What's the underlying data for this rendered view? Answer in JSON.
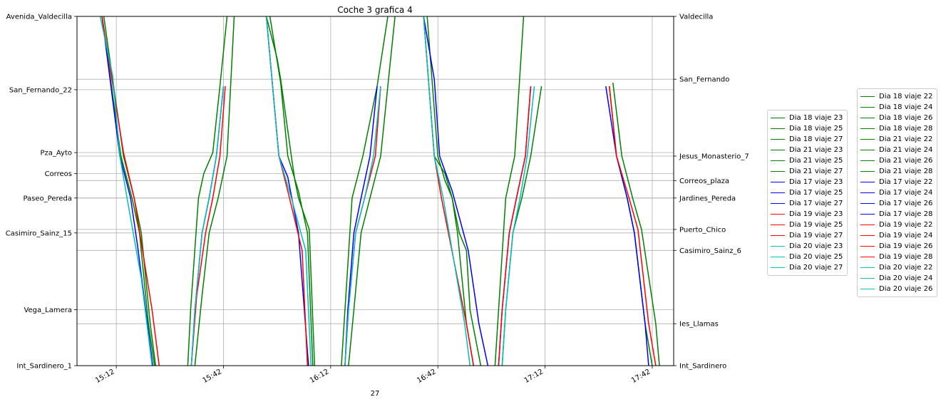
{
  "chart_data": {
    "type": "line",
    "title": "Coche 3 grafica 4",
    "xlabel": "27",
    "x_ticks": [
      "15:12",
      "15:42",
      "16:12",
      "16:42",
      "17:12",
      "17:42"
    ],
    "x_range_minutes": [
      901,
      1068
    ],
    "grid": true,
    "colors": {
      "Dia 17": "#0000ff",
      "Dia 18": "#008000",
      "Dia 19": "#ff0000",
      "Dia 20": "#00bfbf",
      "Dia 21": "#008000"
    },
    "left_stops": [
      {
        "name": "Avenida_Valdecilla",
        "pos": 0
      },
      {
        "name": "San_Fernando_22",
        "pos": 21
      },
      {
        "name": "Pza_Ayto",
        "pos": 39
      },
      {
        "name": "Correos",
        "pos": 45
      },
      {
        "name": "Paseo_Pereda",
        "pos": 52
      },
      {
        "name": "Casimiro_Sainz_15",
        "pos": 62
      },
      {
        "name": "Vega_Lamera",
        "pos": 84
      },
      {
        "name": "Int_Sardinero_1",
        "pos": 100
      }
    ],
    "right_stops": [
      {
        "name": "Valdecilla",
        "pos": 0
      },
      {
        "name": "San_Fernando",
        "pos": 18
      },
      {
        "name": "Jesus_Monasterio_7",
        "pos": 40
      },
      {
        "name": "Correos_plaza",
        "pos": 47
      },
      {
        "name": "Jardines_Pereda",
        "pos": 52
      },
      {
        "name": "Puerto_Chico",
        "pos": 61
      },
      {
        "name": "Casimiro_Sainz_6",
        "pos": 67
      },
      {
        "name": "Ies_Llamas",
        "pos": 88
      },
      {
        "name": "Int_Sardinero",
        "pos": 100
      }
    ],
    "series": [
      {
        "name": "Dia 18 viaje 23",
        "color": "#008000",
        "group": "odd",
        "x": [
          908,
          913.3,
          916.4,
          918.5,
          921,
          922.7
        ],
        "y": [
          0,
          40,
          52,
          62,
          88,
          100
        ]
      },
      {
        "name": "Dia 18 viaje 25",
        "color": "#008000",
        "group": "odd",
        "x": [
          954,
          957,
          958,
          961,
          962,
          963,
          966,
          967.5
        ],
        "y": [
          0,
          12,
          18,
          40,
          47,
          52,
          61,
          100
        ]
      },
      {
        "name": "Dia 18 viaje 27",
        "color": "#008000",
        "group": "odd",
        "x": [
          998,
          1001,
          1004,
          1006,
          1008,
          1010,
          1011,
          1014
        ],
        "y": [
          0,
          40,
          45,
          52,
          62,
          67,
          84,
          100
        ]
      },
      {
        "name": "Dia 21 viaje 23",
        "color": "#008000",
        "group": "odd",
        "x": [
          908.5,
          914,
          917,
          919,
          921.5,
          923
        ],
        "y": [
          0,
          40,
          52,
          62,
          88,
          100
        ]
      },
      {
        "name": "Dia 21 viaje 25",
        "color": "#008000",
        "group": "odd",
        "x": [
          955,
          958,
          960,
          963,
          964,
          965.5,
          967
        ],
        "y": [
          0,
          19,
          40,
          50,
          55,
          62,
          100
        ]
      },
      {
        "name": "Dia 21 viaje 27",
        "color": "#008000",
        "group": "odd",
        "x": [
          999,
          1002,
          1004,
          1006,
          1007.5,
          1010,
          1012
        ],
        "y": [
          0,
          40,
          47,
          52,
          62,
          88,
          100
        ]
      },
      {
        "name": "Dia 17 viaje 23",
        "color": "#0000ff",
        "group": "odd",
        "x": [
          908,
          913,
          916,
          918,
          922.2
        ],
        "y": [
          0,
          40,
          52,
          66,
          100
        ]
      },
      {
        "name": "Dia 17 viaje 25",
        "color": "#0000ff",
        "group": "odd",
        "x": [
          954,
          957.5,
          960,
          963,
          965.8
        ],
        "y": [
          0,
          40,
          46,
          62,
          100
        ]
      },
      {
        "name": "Dia 17 viaje 27",
        "color": "#0000ff",
        "group": "odd",
        "x": [
          998,
          1001,
          1002.5,
          1006,
          1010.5,
          1013.5,
          1016
        ],
        "y": [
          0,
          18,
          40,
          50,
          67,
          88,
          100
        ]
      },
      {
        "name": "Dia 19 viaje 23",
        "color": "#ff0000",
        "group": "odd",
        "x": [
          908,
          914,
          917,
          922,
          924
        ],
        "y": [
          0,
          39,
          52,
          84,
          100
        ]
      },
      {
        "name": "Dia 19 viaje 25",
        "color": "#ff0000",
        "group": "odd",
        "x": [
          954,
          957.5,
          960,
          964,
          965.5
        ],
        "y": [
          0,
          40,
          50,
          67,
          100
        ]
      },
      {
        "name": "Dia 19 viaje 27",
        "color": "#ff0000",
        "group": "odd",
        "x": [
          998,
          1001,
          1003,
          1010,
          1012
        ],
        "y": [
          0,
          40,
          52,
          88,
          100
        ]
      },
      {
        "name": "Dia 20 viaje 23",
        "color": "#00bfbf",
        "group": "odd",
        "x": [
          907.5,
          911,
          913,
          915,
          919,
          922
        ],
        "y": [
          0,
          17,
          40,
          52,
          75,
          100
        ]
      },
      {
        "name": "Dia 20 viaje 25",
        "color": "#00bfbf",
        "group": "odd",
        "x": [
          954,
          957.5,
          961,
          965,
          966.5
        ],
        "y": [
          0,
          40,
          52,
          67,
          100
        ]
      },
      {
        "name": "Dia 20 viaje 27",
        "color": "#00bfbf",
        "group": "odd",
        "x": [
          998,
          1001,
          1003.5,
          1009.5,
          1011
        ],
        "y": [
          0,
          40,
          52,
          88,
          100
        ]
      },
      {
        "name": "Dia 18 viaje 22",
        "color": "#008000",
        "group": "even",
        "x": [
          932,
          932.8,
          935,
          936.5,
          939,
          941,
          943
        ],
        "y": [
          100,
          84,
          52,
          45,
          39,
          20,
          0
        ]
      },
      {
        "name": "Dia 18 viaje 24",
        "color": "#008000",
        "group": "even",
        "x": [
          975,
          976,
          978,
          981,
          985,
          988
        ],
        "y": [
          100,
          84,
          52,
          40,
          20,
          0
        ]
      },
      {
        "name": "Dia 18 viaje 26",
        "color": "#008000",
        "group": "even",
        "x": [
          1018,
          1019,
          1021,
          1023.5,
          1026
        ],
        "y": [
          100,
          84,
          52,
          40,
          0
        ]
      },
      {
        "name": "Dia 18 viaje 28",
        "color": "#008000",
        "group": "even",
        "x": [
          1064,
          1063,
          1059,
          1056.5,
          1053.5,
          1051
        ],
        "y": [
          100,
          88,
          61,
          52,
          40,
          19
        ]
      },
      {
        "name": "Dia 21 viaje 22",
        "color": "#008000",
        "group": "even",
        "x": [
          934,
          936,
          938,
          940.5,
          943,
          945
        ],
        "y": [
          100,
          80,
          62,
          52,
          40,
          0
        ]
      },
      {
        "name": "Dia 21 viaje 24",
        "color": "#008000",
        "group": "even",
        "x": [
          977,
          978.5,
          980.5,
          983,
          986,
          988,
          990
        ],
        "y": [
          100,
          84,
          62,
          52,
          40,
          20,
          0
        ]
      },
      {
        "name": "Dia 21 viaje 26",
        "color": "#008000",
        "group": "even",
        "x": [
          1020,
          1021,
          1023,
          1025.5,
          1028,
          1031
        ],
        "y": [
          100,
          84,
          62,
          52,
          40,
          20
        ]
      },
      {
        "name": "Dia 21 viaje 28",
        "color": "#008000",
        "group": "even",
        "x": [
          1062,
          1060,
          1057,
          1055,
          1052,
          1050
        ],
        "y": [
          100,
          88,
          62,
          52,
          40,
          20
        ]
      },
      {
        "name": "Dia 17 viaje 22",
        "color": "#0000ff",
        "group": "even",
        "x": [
          933,
          934,
          936,
          938,
          940,
          942
        ],
        "y": [
          100,
          84,
          62,
          52,
          40,
          20
        ]
      },
      {
        "name": "Dia 17 viaje 24",
        "color": "#0000ff",
        "group": "even",
        "x": [
          976,
          976.8,
          978.5,
          980.5,
          983,
          985
        ],
        "y": [
          100,
          84,
          62,
          52,
          40,
          20
        ]
      },
      {
        "name": "Dia 17 viaje 26",
        "color": "#0000ff",
        "group": "even",
        "x": [
          1019,
          1020,
          1022,
          1024,
          1026.5,
          1028
        ],
        "y": [
          100,
          84,
          62,
          52,
          40,
          20
        ]
      },
      {
        "name": "Dia 17 viaje 28",
        "color": "#0000ff",
        "group": "even",
        "x": [
          1061,
          1060,
          1057,
          1055,
          1052,
          1049
        ],
        "y": [
          100,
          88,
          62,
          52,
          40,
          20
        ]
      },
      {
        "name": "Dia 19 viaje 22",
        "color": "#ff0000",
        "group": "even",
        "x": [
          933,
          934.5,
          937,
          939,
          941,
          942.5
        ],
        "y": [
          100,
          80,
          62,
          52,
          40,
          20
        ]
      },
      {
        "name": "Dia 19 viaje 24",
        "color": "#ff0000",
        "group": "even",
        "x": [
          976,
          977,
          979,
          981.5,
          984.5,
          986
        ],
        "y": [
          100,
          84,
          62,
          52,
          40,
          20
        ]
      },
      {
        "name": "Dia 19 viaje 26",
        "color": "#ff0000",
        "group": "even",
        "x": [
          1019,
          1020,
          1022,
          1024,
          1026.5,
          1028
        ],
        "y": [
          100,
          84,
          62,
          52,
          40,
          20
        ]
      },
      {
        "name": "Dia 19 viaje 28",
        "color": "#ff0000",
        "group": "even",
        "x": [
          1063,
          1061,
          1058,
          1055.5,
          1052,
          1050
        ],
        "y": [
          100,
          88,
          61,
          52,
          40,
          20
        ]
      },
      {
        "name": "Dia 20 viaje 22",
        "color": "#00bfbf",
        "group": "even",
        "x": [
          933,
          934,
          936,
          938,
          940,
          942
        ],
        "y": [
          100,
          84,
          62,
          52,
          40,
          20
        ]
      },
      {
        "name": "Dia 20 viaje 24",
        "color": "#00bfbf",
        "group": "even",
        "x": [
          976,
          977,
          979,
          981.5,
          984,
          986
        ],
        "y": [
          100,
          84,
          62,
          52,
          40,
          20
        ]
      },
      {
        "name": "Dia 20 viaje 26",
        "color": "#00bfbf",
        "group": "even",
        "x": [
          1020,
          1021,
          1023,
          1025,
          1027,
          1029
        ],
        "y": [
          100,
          84,
          62,
          52,
          40,
          20
        ]
      }
    ]
  }
}
